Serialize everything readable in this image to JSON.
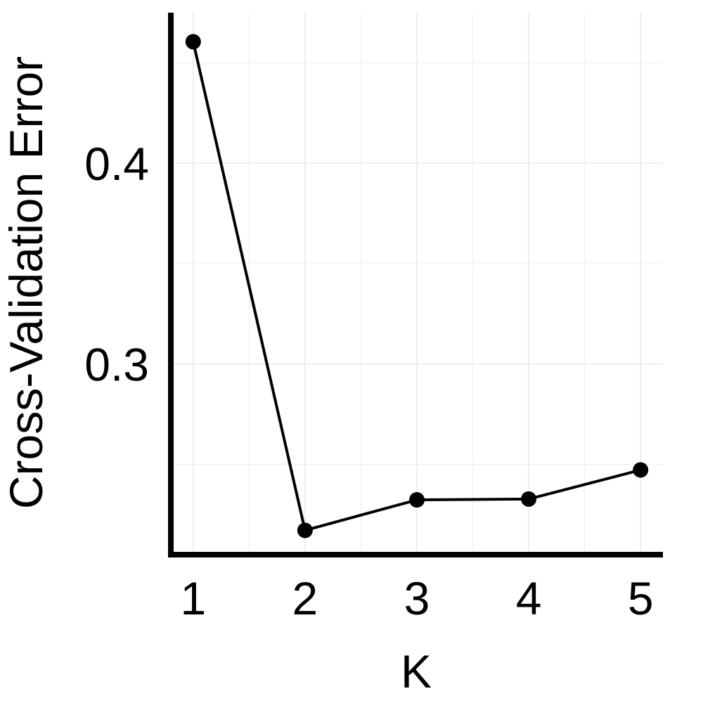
{
  "chart_data": {
    "type": "line",
    "x": [
      1,
      2,
      3,
      4,
      5
    ],
    "series": [
      {
        "values": [
          0.4605,
          0.2171,
          0.2323,
          0.2327,
          0.2472
        ]
      }
    ],
    "xlabel": "K",
    "ylabel": "Cross-Validation Error",
    "xticks": [
      1,
      2,
      3,
      4,
      5
    ],
    "xtick_labels": [
      "1",
      "2",
      "3",
      "4",
      "5"
    ],
    "yticks": [
      0.3,
      0.4
    ],
    "ytick_labels": [
      "0.3",
      "0.4"
    ],
    "xlim": [
      0.8,
      5.2
    ],
    "ylim": [
      0.205,
      0.475
    ],
    "grid": true,
    "line_color": "#000000",
    "grid_color": "#ebebeb"
  }
}
